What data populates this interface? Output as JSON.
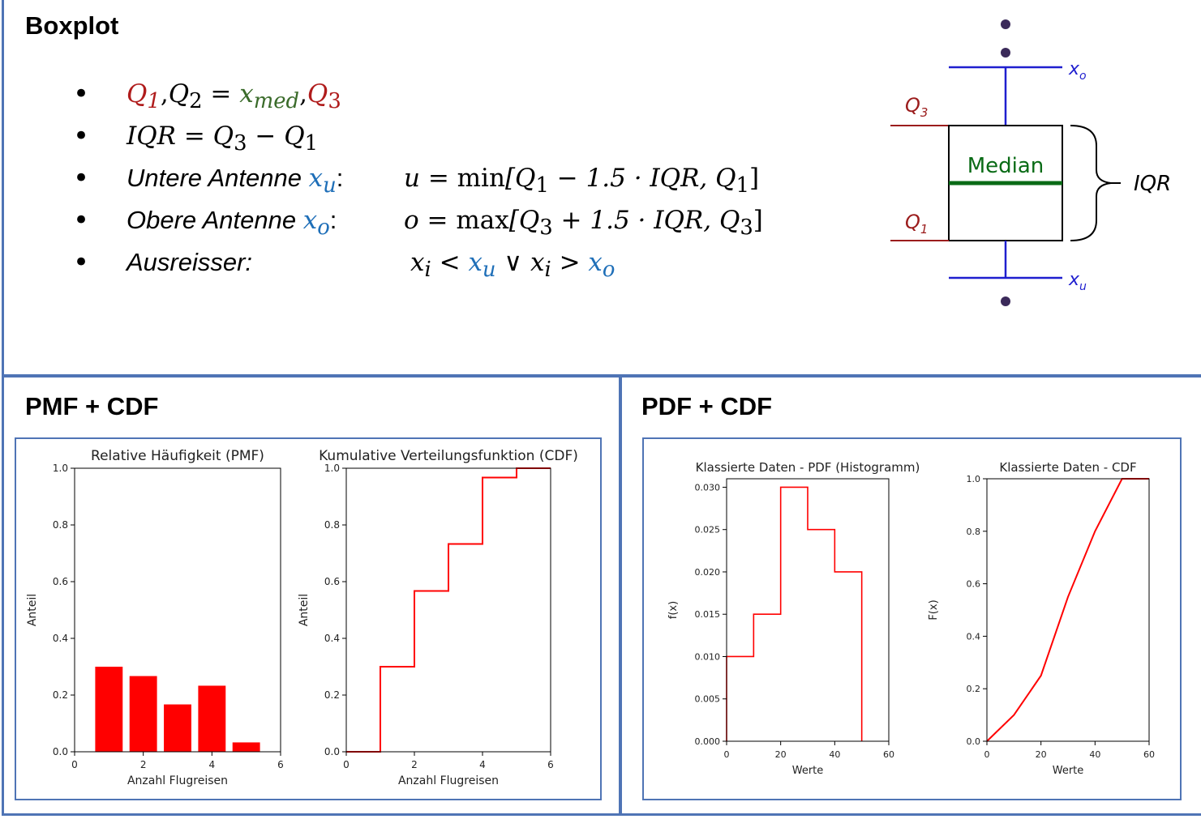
{
  "boxplot_section": {
    "title": "Boxplot",
    "bullets": {
      "q_line": {
        "q1": "Q",
        "q1_sub": "1",
        "comma1": ",",
        "q2": "Q",
        "q2_sub": "2",
        "eq": " = ",
        "x": "x",
        "x_sub": "med",
        "comma2": ",",
        "q3": "Q",
        "q3_sub": "3"
      },
      "iqr_line": {
        "lhs": "IQR = Q",
        "sub3": "3",
        "minus": " − Q",
        "sub1": "1"
      },
      "lower_line": {
        "label": "Untere Antenne ",
        "var": "x",
        "var_sub": "u",
        "colon": ":",
        "formula_a": "u",
        "formula_b": " = ",
        "func": "min",
        "formula_c": "[Q",
        "s1": "1",
        "formula_d": " − 1.5 · IQR, Q",
        "s2": "1",
        "formula_e": "]"
      },
      "upper_line": {
        "label": "Obere Antenne ",
        "var": "x",
        "var_sub": "o",
        "colon": ":",
        "formula_a": "o",
        "formula_b": " = ",
        "func": "max",
        "formula_c": "[Q",
        "s1": "3",
        "formula_d": " + 1.5 · IQR, Q",
        "s2": "3",
        "formula_e": "]"
      },
      "outlier_line": {
        "label": "Ausreisser:",
        "x1": "x",
        "x1_sub": "i",
        "lt": " < ",
        "xu": "x",
        "xu_sub": "u",
        "or": " ∨ ",
        "x2": "x",
        "x2_sub": "i",
        "gt": " > ",
        "xo": "x",
        "xo_sub": "o"
      }
    },
    "diagram": {
      "q3_label": "Q",
      "q3_sub": "3",
      "q1_label": "Q",
      "q1_sub": "1",
      "median_label": "Median",
      "iqr_label": "IQR",
      "xo_label": "x",
      "xo_sub": "o",
      "xu_label": "x",
      "xu_sub": "u",
      "box_color": "#000000",
      "whisker_color": "#1f1fcf",
      "median_color": "#0a6b16",
      "q_color": "#9b1c1c",
      "dot_color": "#3b2a5a"
    }
  },
  "pmf_section": {
    "title": "PMF + CDF"
  },
  "pdf_section": {
    "title": "PDF + CDF"
  },
  "colors": {
    "frame": "#4f74b5",
    "series": "#ff0000"
  },
  "chart_data": [
    {
      "type": "bar",
      "title": "Relative Häufigkeit (PMF)",
      "xlabel": "Anzahl Flugreisen",
      "ylabel": "Anteil",
      "x": [
        1,
        2,
        3,
        4,
        5
      ],
      "values": [
        0.3,
        0.267,
        0.167,
        0.233,
        0.033
      ],
      "xlim": [
        0,
        6
      ],
      "ylim": [
        0,
        1.0
      ],
      "xticks": [
        "0",
        "2",
        "4",
        "6"
      ],
      "yticks": [
        "0.0",
        "0.2",
        "0.4",
        "0.6",
        "0.8",
        "1.0"
      ],
      "color": "#ff0000"
    },
    {
      "type": "line",
      "step": true,
      "title": "Kumulative Verteilungsfunktion (CDF)",
      "xlabel": "Anzahl Flugreisen",
      "ylabel": "Anteil",
      "x": [
        0,
        1,
        2,
        3,
        4,
        5,
        6
      ],
      "values": [
        0.0,
        0.3,
        0.567,
        0.733,
        0.967,
        1.0,
        1.0
      ],
      "xlim": [
        0,
        6
      ],
      "ylim": [
        0,
        1.0
      ],
      "xticks": [
        "0",
        "2",
        "4",
        "6"
      ],
      "yticks": [
        "0.0",
        "0.2",
        "0.4",
        "0.6",
        "0.8",
        "1.0"
      ],
      "color": "#ff0000"
    },
    {
      "type": "line",
      "step": true,
      "title": "Klassierte Daten - PDF (Histogramm)",
      "xlabel": "Werte",
      "ylabel": "f(x)",
      "bin_edges": [
        0,
        10,
        20,
        30,
        40,
        50
      ],
      "values": [
        0.01,
        0.015,
        0.03,
        0.025,
        0.02
      ],
      "xlim": [
        0,
        60
      ],
      "ylim": [
        0,
        0.031
      ],
      "xticks": [
        "0",
        "20",
        "40",
        "60"
      ],
      "yticks": [
        "0.000",
        "0.005",
        "0.010",
        "0.015",
        "0.020",
        "0.025",
        "0.030"
      ],
      "color": "#ff0000"
    },
    {
      "type": "line",
      "title": "Klassierte Daten - CDF",
      "xlabel": "Werte",
      "ylabel": "F(x)",
      "x": [
        0,
        10,
        20,
        30,
        40,
        50,
        60
      ],
      "values": [
        0.0,
        0.1,
        0.25,
        0.55,
        0.8,
        1.0,
        1.0
      ],
      "xlim": [
        0,
        60
      ],
      "ylim": [
        0,
        1.0
      ],
      "xticks": [
        "0",
        "20",
        "40",
        "60"
      ],
      "yticks": [
        "0.0",
        "0.2",
        "0.4",
        "0.6",
        "0.8",
        "1.0"
      ],
      "color": "#ff0000"
    }
  ]
}
